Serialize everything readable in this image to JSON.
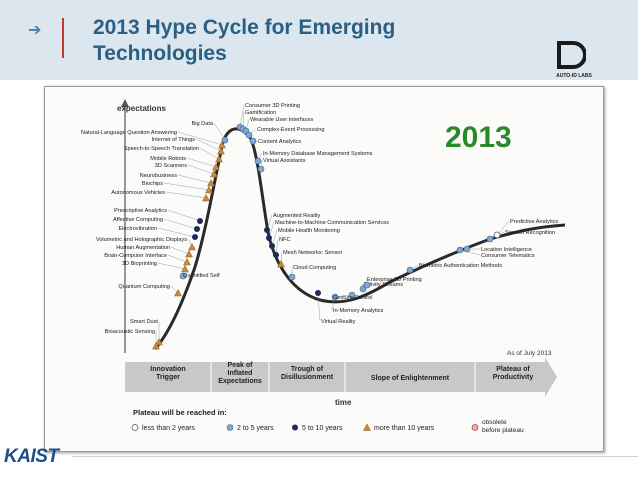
{
  "header": {
    "title": "2013 Hype Cycle for Emerging Technologies",
    "logo_text": "AUTO-ID LABS"
  },
  "footer": {
    "logo_text": "KAIST"
  },
  "diagram": {
    "year": "2013",
    "y_axis_label": "expectations",
    "x_axis_label": "time",
    "as_of": "As of July 2013",
    "phases": [
      {
        "id": "innovation",
        "lines": [
          "Innovation",
          "Trigger"
        ]
      },
      {
        "id": "peak",
        "lines": [
          "Peak of",
          "Inflated",
          "Expectations"
        ]
      },
      {
        "id": "trough",
        "lines": [
          "Trough of",
          "Disillusionment"
        ]
      },
      {
        "id": "slope",
        "lines": [
          "Slope of Enlightenment"
        ]
      },
      {
        "id": "plateau",
        "lines": [
          "Plateau of",
          "Productivity"
        ]
      }
    ],
    "legend": {
      "title": "Plateau will be reached in:",
      "items": [
        {
          "marker": "open",
          "label": "less than 2 years"
        },
        {
          "marker": "light",
          "label": "2 to 5 years"
        },
        {
          "marker": "dark",
          "label": "5 to 10 years"
        },
        {
          "marker": "triangle",
          "label": "more than 10 years"
        },
        {
          "marker": "obsolete",
          "label": "obsolete before plateau"
        }
      ]
    },
    "technologies": [
      {
        "label": "Consumer 3D Printing",
        "marker": "light"
      },
      {
        "label": "Gamification",
        "marker": "light"
      },
      {
        "label": "Wearable User Interfaces",
        "marker": "light"
      },
      {
        "label": "Complex-Event Processing",
        "marker": "light"
      },
      {
        "label": "Content Analytics",
        "marker": "light"
      },
      {
        "label": "In-Memory Database Management Systems",
        "marker": "light"
      },
      {
        "label": "Virtual Assistants",
        "marker": "light"
      },
      {
        "label": "Big Data",
        "marker": "light"
      },
      {
        "label": "Natural-Language Question Answering",
        "marker": "triangle"
      },
      {
        "label": "Internet of Things",
        "marker": "triangle"
      },
      {
        "label": "Speech-to-Speech Translation",
        "marker": "triangle"
      },
      {
        "label": "Mobile Robots",
        "marker": "triangle"
      },
      {
        "label": "3D Scanners",
        "marker": "triangle"
      },
      {
        "label": "Neurobusiness",
        "marker": "triangle"
      },
      {
        "label": "Biochips",
        "marker": "triangle"
      },
      {
        "label": "Autonomous Vehicles",
        "marker": "triangle"
      },
      {
        "label": "Prescriptive Analytics",
        "marker": "dark"
      },
      {
        "label": "Affective Computing",
        "marker": "dark"
      },
      {
        "label": "Electrovibration",
        "marker": "dark"
      },
      {
        "label": "Volumetric and Holographic Displays",
        "marker": "triangle"
      },
      {
        "label": "Human Augmentation",
        "marker": "triangle"
      },
      {
        "label": "Brain-Computer Interface",
        "marker": "triangle"
      },
      {
        "label": "3D Bioprinting",
        "marker": "triangle"
      },
      {
        "label": "Quantified Self",
        "marker": "light"
      },
      {
        "label": "Quantum Computing",
        "marker": "triangle"
      },
      {
        "label": "Smart Dust",
        "marker": "triangle"
      },
      {
        "label": "Bioacoustic Sensing",
        "marker": "triangle"
      },
      {
        "label": "Augmented Reality",
        "marker": "dark"
      },
      {
        "label": "Machine-to-Machine Communication Services",
        "marker": "dark"
      },
      {
        "label": "Mobile Health Monitoring",
        "marker": "dark"
      },
      {
        "label": "NFC",
        "marker": "dark"
      },
      {
        "label": "Mesh Networks: Sensor",
        "marker": "triangle"
      },
      {
        "label": "Cloud Computing",
        "marker": "light"
      },
      {
        "label": "Virtual Reality",
        "marker": "dark"
      },
      {
        "label": "In-Memory Analytics",
        "marker": "light"
      },
      {
        "label": "Gesture Control",
        "marker": "light"
      },
      {
        "label": "Activity Streams",
        "marker": "light"
      },
      {
        "label": "Enterprise 3D Printing",
        "marker": "light"
      },
      {
        "label": "Biometric Authentication Methods",
        "marker": "light"
      },
      {
        "label": "Consumer Telematics",
        "marker": "light"
      },
      {
        "label": "Location Intelligence",
        "marker": "light"
      },
      {
        "label": "Speech Recognition",
        "marker": "light"
      },
      {
        "label": "Predictive Analytics",
        "marker": "open"
      }
    ]
  }
}
